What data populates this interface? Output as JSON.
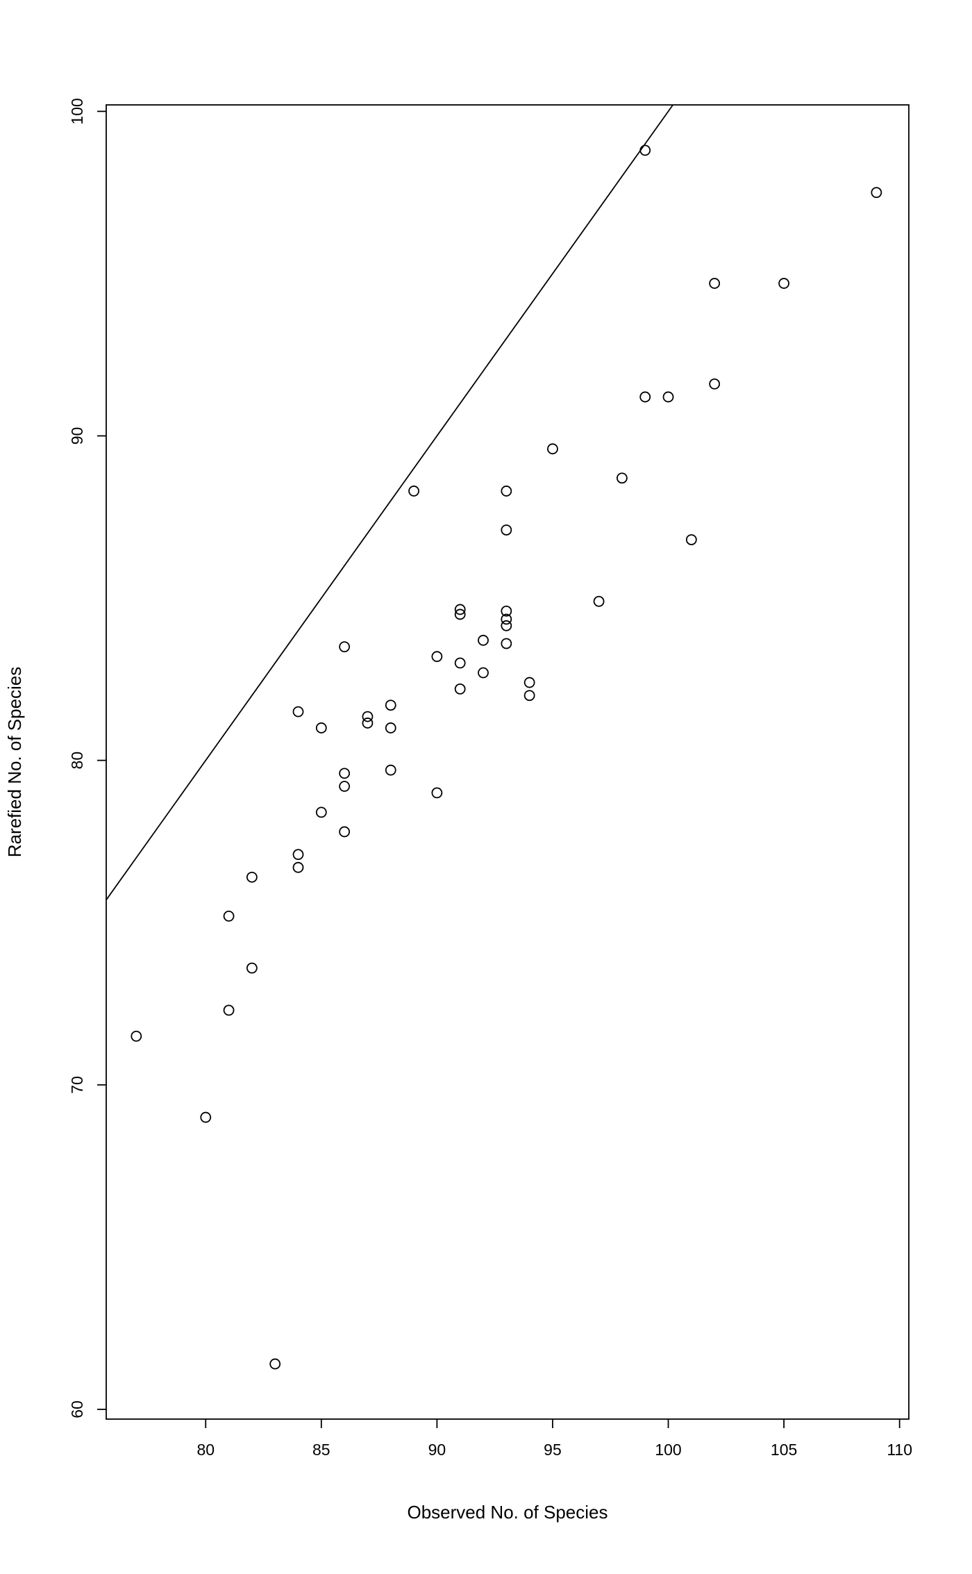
{
  "chart_data": {
    "type": "scatter",
    "title": "",
    "xlabel": "Observed No. of Species",
    "ylabel": "Rarefied No. of Species",
    "xlim": [
      75.7,
      110.4
    ],
    "ylim": [
      59.7,
      100.2
    ],
    "x_ticks": [
      80,
      85,
      90,
      95,
      100,
      105,
      110
    ],
    "y_ticks": [
      60,
      70,
      80,
      90,
      100
    ],
    "grid": false,
    "legend": "none",
    "marker": "open-circle",
    "marker_color": "#000000",
    "line_color": "#000000",
    "reference_line": {
      "type": "abline",
      "slope": 1,
      "intercept": 0
    },
    "points": [
      [
        99,
        98.8
      ],
      [
        109,
        97.5
      ],
      [
        102,
        94.7
      ],
      [
        105,
        94.7
      ],
      [
        102,
        91.6
      ],
      [
        99,
        91.2
      ],
      [
        100,
        91.2
      ],
      [
        95,
        89.6
      ],
      [
        98,
        88.7
      ],
      [
        89,
        88.3
      ],
      [
        93,
        88.3
      ],
      [
        93,
        87.1
      ],
      [
        101,
        86.8
      ],
      [
        97,
        84.9
      ],
      [
        91,
        84.65
      ],
      [
        91,
        84.5
      ],
      [
        93,
        84.6
      ],
      [
        93,
        84.35
      ],
      [
        93,
        84.15
      ],
      [
        92,
        83.7
      ],
      [
        93,
        83.6
      ],
      [
        86,
        83.5
      ],
      [
        90,
        83.2
      ],
      [
        91,
        83.0
      ],
      [
        92,
        82.7
      ],
      [
        94,
        82.4
      ],
      [
        91,
        82.2
      ],
      [
        94,
        82.0
      ],
      [
        88,
        81.7
      ],
      [
        84,
        81.5
      ],
      [
        87,
        81.35
      ],
      [
        87,
        81.15
      ],
      [
        85,
        81.0
      ],
      [
        88,
        81.0
      ],
      [
        88,
        79.7
      ],
      [
        86,
        79.6
      ],
      [
        86,
        79.2
      ],
      [
        90,
        79.0
      ],
      [
        85,
        78.4
      ],
      [
        86,
        77.8
      ],
      [
        84,
        77.1
      ],
      [
        84,
        76.7
      ],
      [
        82,
        76.4
      ],
      [
        81,
        75.2
      ],
      [
        82,
        73.6
      ],
      [
        81,
        72.3
      ],
      [
        77,
        71.5
      ],
      [
        80,
        69.0
      ],
      [
        83,
        61.4
      ]
    ]
  }
}
